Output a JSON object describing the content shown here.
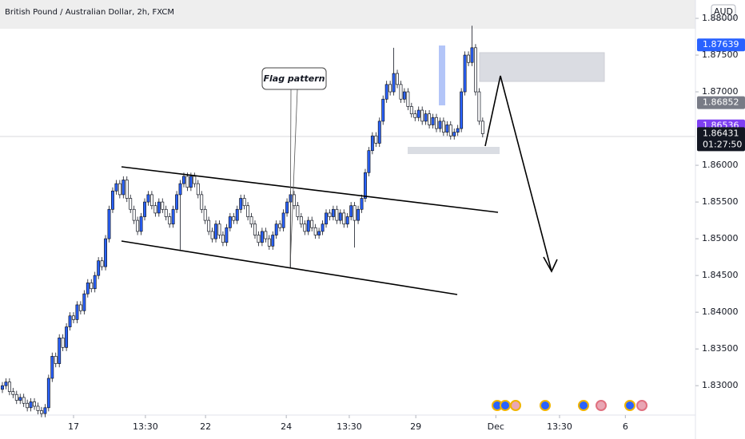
{
  "chart_data": {
    "type": "candlestick",
    "title": "British Pound / Australian Dollar, 2h, FXCM",
    "currency": "AUD",
    "annotation": "Flag pattern",
    "up_color": "#2962ff",
    "down_color": "#ffffff",
    "wick_color": "#131722",
    "grid": false,
    "xlim": [
      -0.67,
      194.8
    ],
    "ylim": [
      1.826,
      1.8825
    ],
    "yticks": [
      {
        "value": 1.83,
        "label": "1.83000"
      },
      {
        "value": 1.835,
        "label": "1.83500"
      },
      {
        "value": 1.84,
        "label": "1.84000"
      },
      {
        "value": 1.845,
        "label": "1.84500"
      },
      {
        "value": 1.85,
        "label": "1.85000"
      },
      {
        "value": 1.855,
        "label": "1.85500"
      },
      {
        "value": 1.86,
        "label": "1.86000"
      },
      {
        "value": 1.87,
        "label": "1.87000"
      },
      {
        "value": 1.875,
        "label": "1.87500"
      },
      {
        "value": 1.88,
        "label": "1.88000"
      }
    ],
    "xticks": [
      {
        "value": 20.0,
        "label": "17"
      },
      {
        "value": 40.2,
        "label": "13:30"
      },
      {
        "value": 57.1,
        "label": "22"
      },
      {
        "value": 79.8,
        "label": "24"
      },
      {
        "value": 97.5,
        "label": "13:30"
      },
      {
        "value": 116.2,
        "label": "29"
      },
      {
        "value": 138.7,
        "label": "Dec"
      },
      {
        "value": 156.6,
        "label": "13:30"
      },
      {
        "value": 175.1,
        "label": "6"
      }
    ],
    "price_tags": [
      {
        "value": 1.87639,
        "color": "#2962ff"
      },
      {
        "value": 1.86852,
        "color": "#787b86"
      },
      {
        "value": 1.86536,
        "color": "#7e3ff2"
      },
      {
        "value": 1.86431,
        "color": "#131722"
      }
    ],
    "countdown": "01:27:50",
    "open": [
      1.8295,
      1.83,
      1.8305,
      1.8292,
      1.8288,
      1.828,
      1.8284,
      1.8276,
      1.827,
      1.8278,
      1.8272,
      1.8266,
      1.8262,
      1.827,
      1.831,
      1.834,
      1.833,
      1.8365,
      1.8352,
      1.838,
      1.8395,
      1.839,
      1.841,
      1.8402,
      1.8425,
      1.844,
      1.8432,
      1.845,
      1.847,
      1.8462,
      1.85,
      1.854,
      1.8565,
      1.8575,
      1.856,
      1.858,
      1.8555,
      1.854,
      1.8525,
      1.851,
      1.853,
      1.855,
      1.856,
      1.8545,
      1.8535,
      1.855,
      1.854,
      1.853,
      1.852,
      1.854,
      1.856,
      1.8575,
      1.8585,
      1.857,
      1.8585,
      1.8575,
      1.856,
      1.854,
      1.8525,
      1.851,
      1.85,
      1.852,
      1.8505,
      1.8495,
      1.8515,
      1.853,
      1.8525,
      1.854,
      1.8555,
      1.8545,
      1.853,
      1.852,
      1.8505,
      1.8495,
      1.851,
      1.85,
      1.849,
      1.8505,
      1.852,
      1.8515,
      1.8535,
      1.855,
      1.856,
      1.8545,
      1.853,
      1.852,
      1.851,
      1.8525,
      1.8515,
      1.8505,
      1.851,
      1.852,
      1.8535,
      1.853,
      1.854,
      1.8525,
      1.8535,
      1.852,
      1.853,
      1.8545,
      1.8525,
      1.854,
      1.8555,
      1.859,
      1.862,
      1.864,
      1.863,
      1.866,
      1.869,
      1.871,
      1.87,
      1.8725,
      1.871,
      1.869,
      1.87,
      1.868,
      1.867,
      1.8665,
      1.8675,
      1.866,
      1.867,
      1.8655,
      1.8665,
      1.865,
      1.866,
      1.8645,
      1.8655,
      1.864,
      1.8645,
      1.865,
      1.87,
      1.875,
      1.874,
      1.876,
      1.87,
      1.866
    ],
    "high": [
      1.8305,
      1.831,
      1.831,
      1.8297,
      1.8293,
      1.8289,
      1.8289,
      1.8281,
      1.8283,
      1.8283,
      1.8277,
      1.8271,
      1.8275,
      1.8315,
      1.8345,
      1.8345,
      1.837,
      1.837,
      1.8385,
      1.84,
      1.84,
      1.8415,
      1.8415,
      1.843,
      1.8445,
      1.8445,
      1.8455,
      1.8475,
      1.8475,
      1.8505,
      1.8545,
      1.857,
      1.858,
      1.858,
      1.8585,
      1.8585,
      1.856,
      1.8545,
      1.853,
      1.8535,
      1.8555,
      1.8565,
      1.8565,
      1.855,
      1.8555,
      1.8555,
      1.8545,
      1.8535,
      1.8545,
      1.8565,
      1.858,
      1.859,
      1.859,
      1.859,
      1.859,
      1.858,
      1.8565,
      1.8545,
      1.853,
      1.8515,
      1.8525,
      1.8525,
      1.851,
      1.852,
      1.8535,
      1.8535,
      1.8545,
      1.856,
      1.856,
      1.855,
      1.8535,
      1.8525,
      1.851,
      1.8515,
      1.8515,
      1.8505,
      1.851,
      1.8525,
      1.8525,
      1.854,
      1.8555,
      1.8565,
      1.8565,
      1.855,
      1.8535,
      1.8525,
      1.853,
      1.853,
      1.852,
      1.8515,
      1.8525,
      1.854,
      1.854,
      1.8545,
      1.8545,
      1.854,
      1.854,
      1.8535,
      1.855,
      1.855,
      1.8545,
      1.856,
      1.8595,
      1.8625,
      1.8645,
      1.8645,
      1.8665,
      1.8695,
      1.8715,
      1.8715,
      1.876,
      1.873,
      1.8715,
      1.8705,
      1.8705,
      1.8685,
      1.8675,
      1.868,
      1.868,
      1.8675,
      1.8675,
      1.867,
      1.867,
      1.8665,
      1.8665,
      1.866,
      1.866,
      1.865,
      1.8655,
      1.8705,
      1.8755,
      1.8755,
      1.879,
      1.8765,
      1.8705,
      1.8665
    ],
    "low": [
      1.829,
      1.8295,
      1.8287,
      1.8283,
      1.8275,
      1.8275,
      1.8271,
      1.8265,
      1.8265,
      1.8267,
      1.8261,
      1.8257,
      1.8257,
      1.8265,
      1.8305,
      1.8325,
      1.8325,
      1.8347,
      1.8347,
      1.8375,
      1.8385,
      1.8385,
      1.8397,
      1.8397,
      1.842,
      1.8427,
      1.8427,
      1.8445,
      1.8457,
      1.8457,
      1.8495,
      1.8535,
      1.856,
      1.8555,
      1.8555,
      1.855,
      1.8535,
      1.852,
      1.8505,
      1.8505,
      1.8525,
      1.8545,
      1.854,
      1.853,
      1.853,
      1.8535,
      1.8525,
      1.8515,
      1.8515,
      1.8535,
      1.8485,
      1.857,
      1.8565,
      1.8565,
      1.857,
      1.8555,
      1.8535,
      1.852,
      1.8505,
      1.8495,
      1.8495,
      1.85,
      1.849,
      1.849,
      1.851,
      1.852,
      1.852,
      1.8535,
      1.854,
      1.8525,
      1.8515,
      1.85,
      1.849,
      1.849,
      1.8495,
      1.8485,
      1.8485,
      1.85,
      1.851,
      1.851,
      1.853,
      1.846,
      1.854,
      1.8525,
      1.8515,
      1.8505,
      1.8505,
      1.851,
      1.85,
      1.85,
      1.8505,
      1.8515,
      1.8525,
      1.8525,
      1.852,
      1.852,
      1.8515,
      1.8515,
      1.8525,
      1.8488,
      1.852,
      1.8535,
      1.855,
      1.8585,
      1.8615,
      1.8625,
      1.8625,
      1.8655,
      1.8685,
      1.8695,
      1.8695,
      1.8705,
      1.8685,
      1.8685,
      1.8675,
      1.8665,
      1.866,
      1.866,
      1.8655,
      1.8655,
      1.865,
      1.865,
      1.8645,
      1.8645,
      1.864,
      1.864,
      1.8635,
      1.8635,
      1.864,
      1.8645,
      1.8695,
      1.8735,
      1.8735,
      1.8695,
      1.8655,
      1.8638
    ],
    "close": [
      1.83,
      1.8305,
      1.8292,
      1.8288,
      1.828,
      1.8284,
      1.8276,
      1.827,
      1.8278,
      1.8272,
      1.8266,
      1.8262,
      1.827,
      1.831,
      1.834,
      1.833,
      1.8365,
      1.8352,
      1.838,
      1.8395,
      1.839,
      1.841,
      1.8402,
      1.8425,
      1.844,
      1.8432,
      1.845,
      1.847,
      1.8462,
      1.85,
      1.854,
      1.8565,
      1.8575,
      1.856,
      1.858,
      1.8555,
      1.854,
      1.8525,
      1.851,
      1.853,
      1.855,
      1.856,
      1.8545,
      1.8535,
      1.855,
      1.854,
      1.853,
      1.852,
      1.854,
      1.856,
      1.8575,
      1.8585,
      1.857,
      1.8585,
      1.8575,
      1.856,
      1.854,
      1.8525,
      1.851,
      1.85,
      1.852,
      1.8505,
      1.8495,
      1.8515,
      1.853,
      1.8525,
      1.854,
      1.8555,
      1.8545,
      1.853,
      1.852,
      1.8505,
      1.8495,
      1.851,
      1.85,
      1.849,
      1.8505,
      1.852,
      1.8515,
      1.8535,
      1.855,
      1.856,
      1.8545,
      1.853,
      1.852,
      1.851,
      1.8525,
      1.8515,
      1.8505,
      1.851,
      1.852,
      1.8535,
      1.853,
      1.854,
      1.8525,
      1.8535,
      1.852,
      1.853,
      1.8545,
      1.8525,
      1.854,
      1.8555,
      1.859,
      1.862,
      1.864,
      1.863,
      1.866,
      1.869,
      1.871,
      1.87,
      1.8725,
      1.871,
      1.869,
      1.87,
      1.868,
      1.867,
      1.8665,
      1.8675,
      1.866,
      1.867,
      1.8655,
      1.8665,
      1.865,
      1.866,
      1.8645,
      1.8655,
      1.864,
      1.8645,
      1.865,
      1.87,
      1.875,
      1.874,
      1.876,
      1.87,
      1.866,
      1.8643
    ]
  }
}
